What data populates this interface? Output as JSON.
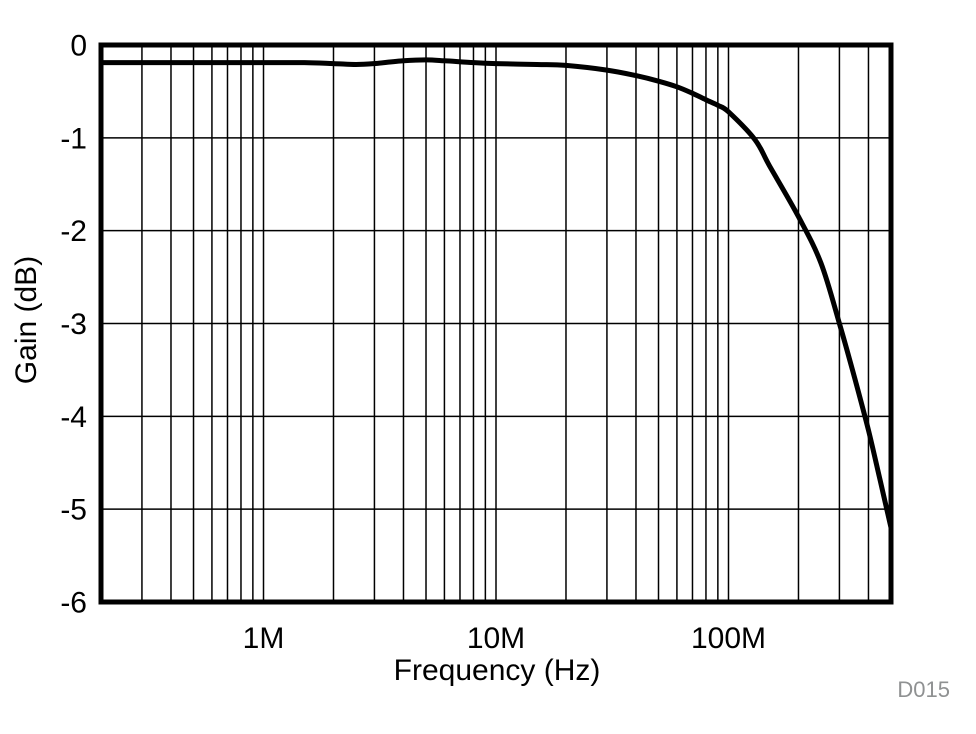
{
  "figure": {
    "watermark": "D015",
    "watermark_color": "#8f9192",
    "background_color": "#ffffff",
    "line_color": "#000000"
  },
  "chart_data": {
    "type": "line",
    "title": "",
    "xlabel": "Frequency (Hz)",
    "ylabel": "Gain (dB)",
    "x_scale": "log",
    "xlim": [
      200000,
      500000000
    ],
    "ylim": [
      -6,
      0
    ],
    "grid": true,
    "legend": "none",
    "x_ticks": [
      {
        "value": 1000000,
        "label": "1M"
      },
      {
        "value": 10000000,
        "label": "10M"
      },
      {
        "value": 100000000,
        "label": "100M"
      }
    ],
    "y_ticks": [
      {
        "value": 0,
        "label": "0"
      },
      {
        "value": -1,
        "label": "-1"
      },
      {
        "value": -2,
        "label": "-2"
      },
      {
        "value": -3,
        "label": "-3"
      },
      {
        "value": -4,
        "label": "-4"
      },
      {
        "value": -5,
        "label": "-5"
      },
      {
        "value": -6,
        "label": "-6"
      }
    ],
    "series": [
      {
        "name": "gain",
        "x": [
          200000,
          300000,
          500000,
          700000,
          1000000,
          1500000,
          2000000,
          2500000,
          3000000,
          4000000,
          5000000,
          6000000,
          8000000,
          10000000,
          15000000,
          20000000,
          30000000,
          40000000,
          50000000,
          60000000,
          70000000,
          80000000,
          90000000,
          100000000,
          130000000,
          150000000,
          200000000,
          250000000,
          300000000,
          350000000,
          400000000,
          450000000,
          500000000
        ],
        "y": [
          -0.19,
          -0.19,
          -0.19,
          -0.19,
          -0.19,
          -0.19,
          -0.2,
          -0.21,
          -0.2,
          -0.17,
          -0.16,
          -0.17,
          -0.19,
          -0.2,
          -0.21,
          -0.22,
          -0.27,
          -0.33,
          -0.39,
          -0.45,
          -0.52,
          -0.59,
          -0.65,
          -0.72,
          -1.02,
          -1.3,
          -1.85,
          -2.35,
          -3.0,
          -3.6,
          -4.15,
          -4.7,
          -5.2
        ]
      }
    ]
  }
}
